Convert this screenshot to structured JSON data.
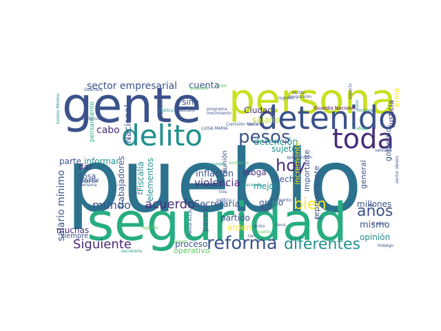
{
  "colors": {
    "navy": "#3b528b",
    "indigo": "#472d7b",
    "purple": "#482878",
    "violet": "#440154",
    "teal": "#21908d",
    "blue": "#2c728e",
    "green": "#27ad81",
    "lime": "#5ec962",
    "yellow": "#c8e020",
    "gold": "#fde725"
  },
  "words": [
    {
      "text": "pueblo",
      "color": "blue"
    },
    {
      "text": "seguridad",
      "color": "green"
    },
    {
      "text": "gente",
      "color": "navy"
    },
    {
      "text": "persona",
      "color": "yellow"
    },
    {
      "text": "detenido",
      "color": "navy"
    },
    {
      "text": "delito",
      "color": "teal"
    },
    {
      "text": "toda",
      "color": "indigo"
    },
    {
      "text": "reforma",
      "color": "navy"
    },
    {
      "text": "diferentes",
      "color": "teal"
    },
    {
      "text": "pesos",
      "color": "navy"
    },
    {
      "text": "hoy",
      "color": "indigo"
    },
    {
      "text": "bien",
      "color": "gold"
    },
    {
      "text": "años",
      "color": "navy"
    },
    {
      "text": "sector empresarial",
      "color": "navy"
    },
    {
      "text": "acuerdo",
      "color": "indigo"
    },
    {
      "text": "mundo",
      "color": "navy"
    },
    {
      "text": "Siguiente",
      "color": "purple"
    },
    {
      "text": "salario mínimo",
      "color": "navy"
    },
    {
      "text": "violencia",
      "color": "indigo"
    },
    {
      "text": "cuenta",
      "color": "navy"
    },
    {
      "text": "Ciudad",
      "color": "indigo"
    },
    {
      "text": "salario",
      "color": "yellow"
    },
    {
      "text": "detención",
      "color": "teal"
    },
    {
      "text": "sujeto",
      "color": "teal"
    },
    {
      "text": "droga",
      "color": "indigo"
    },
    {
      "text": "hecho",
      "color": "navy"
    },
    {
      "text": "mejor",
      "color": "teal"
    },
    {
      "text": "grupo",
      "color": "navy"
    },
    {
      "text": "partido",
      "color": "navy"
    },
    {
      "text": "orden",
      "color": "gold"
    },
    {
      "text": "Secretaría",
      "color": "navy"
    },
    {
      "text": "pasado",
      "color": "navy"
    },
    {
      "text": "proceso",
      "color": "navy"
    },
    {
      "text": "operativo",
      "color": "lime"
    },
    {
      "text": "millones",
      "color": "navy"
    },
    {
      "text": "mismo",
      "color": "navy"
    },
    {
      "text": "opinión",
      "color": "teal"
    },
    {
      "text": "cabo",
      "color": "indigo"
    },
    {
      "text": "informar",
      "color": "teal"
    },
    {
      "text": "parte",
      "color": "navy"
    },
    {
      "text": "dar",
      "color": "indigo"
    },
    {
      "text": "cosa",
      "color": "navy"
    },
    {
      "text": "muchas",
      "color": "indigo"
    },
    {
      "text": "siempre",
      "color": "navy"
    },
    {
      "text": "partir",
      "color": "navy"
    },
    {
      "text": "sino",
      "color": "navy"
    },
    {
      "text": "Nacional",
      "color": "navy"
    },
    {
      "text": "Fiscalía",
      "color": "teal"
    },
    {
      "text": "elementos",
      "color": "teal"
    },
    {
      "text": "trabajadores",
      "color": "navy"
    },
    {
      "text": "inflación",
      "color": "navy"
    },
    {
      "text": "reunión",
      "color": "navy"
    },
    {
      "text": "incremento",
      "color": "gold"
    },
    {
      "text": "importante",
      "color": "navy"
    },
    {
      "text": "representante",
      "color": "navy"
    },
    {
      "text": "general",
      "color": "navy"
    },
    {
      "text": "gobierno",
      "color": "navy"
    },
    {
      "text": "justicia",
      "color": "indigo"
    },
    {
      "text": "arma",
      "color": "gold"
    },
    {
      "text": "Guardia Nacional",
      "color": "violet"
    },
    {
      "text": "pensamiento",
      "color": "green"
    },
    {
      "text": "realidad",
      "color": "navy"
    },
    {
      "text": "Salario Mínimo",
      "color": "teal"
    },
    {
      "text": "Guerrero",
      "color": "navy"
    },
    {
      "text": "presente",
      "color": "lime"
    },
    {
      "text": "lugar",
      "color": "lime"
    },
    {
      "text": "mexicano",
      "color": "navy"
    },
    {
      "text": "pública",
      "color": "teal"
    },
    {
      "text": "programa",
      "color": "navy"
    },
    {
      "text": "movimiento",
      "color": "navy"
    },
    {
      "text": "Comisión Nacional",
      "color": "navy"
    },
    {
      "text": "LUISA MARÍA",
      "color": "navy"
    },
    {
      "text": "logrado",
      "color": "navy"
    },
    {
      "text": "sector",
      "color": "navy"
    },
    {
      "text": "aseguraron",
      "color": "navy"
    },
    {
      "text": "sentenciado",
      "color": "navy"
    },
    {
      "text": "noviembre",
      "color": "teal"
    },
    {
      "text": "sentencia",
      "color": "lime"
    },
    {
      "text": "Hacienda",
      "color": "teal"
    },
    {
      "text": "aprehensión",
      "color": "navy"
    },
    {
      "text": "después",
      "color": "navy"
    },
    {
      "text": "crea",
      "color": "navy"
    },
    {
      "text": "lleva",
      "color": "navy"
    },
    {
      "text": "país",
      "color": "navy"
    },
    {
      "text": "trabajo",
      "color": "green"
    },
    {
      "text": "vehículo",
      "color": "navy"
    },
    {
      "text": "sector obrero",
      "color": "navy"
    },
    {
      "text": "valor",
      "color": "teal"
    },
    {
      "text": "hombre",
      "color": "teal"
    },
    {
      "text": "espacio",
      "color": "navy"
    },
    {
      "text": "países",
      "color": "navy"
    },
    {
      "text": "dicho",
      "color": "navy"
    },
    {
      "text": "evento",
      "color": "lime"
    },
    {
      "text": "tan",
      "color": "navy"
    },
    {
      "text": "Hidalgo",
      "color": "navy"
    },
    {
      "text": "6 años",
      "color": "navy"
    },
    {
      "text": "política",
      "color": "navy"
    },
    {
      "text": "momento",
      "color": "navy"
    },
    {
      "text": "MARÍA ALCALDE",
      "color": "navy"
    },
    {
      "text": "secretaría",
      "color": "teal"
    },
    {
      "text": "Agenda",
      "color": "lime"
    },
    {
      "text": "línea",
      "color": "navy"
    },
    {
      "text": "persona",
      "color": "navy"
    },
    {
      "text": "tres",
      "color": "navy"
    },
    {
      "text": "vez",
      "color": "navy"
    },
    {
      "text": "zona",
      "color": "navy"
    },
    {
      "text": "puesto",
      "color": "lime"
    },
    {
      "text": "dijo",
      "color": "navy"
    },
    {
      "text": "caso",
      "color": "navy"
    }
  ]
}
